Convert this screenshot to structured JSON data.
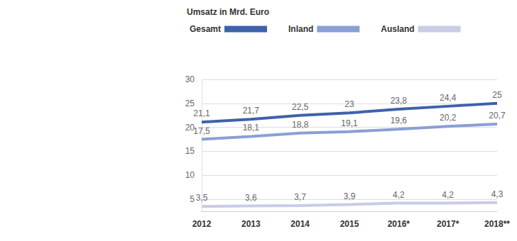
{
  "chart_data": {
    "type": "line",
    "title": "Umsatz in Mrd. Euro",
    "categories": [
      "2012",
      "2013",
      "2014",
      "2015",
      "2016*",
      "2017*",
      "2018**"
    ],
    "series": [
      {
        "name": "Gesamt",
        "color": "#3e62ab",
        "values": [
          21.1,
          21.7,
          22.5,
          23,
          23.8,
          24.4,
          25
        ],
        "value_labels": [
          "21,1",
          "21,7",
          "22,5",
          "23",
          "23,8",
          "24,4",
          "25"
        ]
      },
      {
        "name": "Inland",
        "color": "#8b9fd5",
        "values": [
          17.5,
          18.1,
          18.8,
          19.1,
          19.6,
          20.2,
          20.7
        ],
        "value_labels": [
          "17,5",
          "18,1",
          "18,8",
          "19,1",
          "19,6",
          "20,2",
          "20,7"
        ]
      },
      {
        "name": "Ausland",
        "color": "#c8cce6",
        "values": [
          3.5,
          3.6,
          3.7,
          3.9,
          4.2,
          4.2,
          4.3
        ],
        "value_labels": [
          "3,5",
          "3,6",
          "3,7",
          "3,9",
          "4,2",
          "4,2",
          "4,3"
        ]
      }
    ],
    "ylim": [
      2.5,
      30
    ],
    "yticks": [
      5,
      10,
      15,
      20,
      25,
      30
    ],
    "grid": true,
    "data_labels": true,
    "legend": "top-left"
  }
}
